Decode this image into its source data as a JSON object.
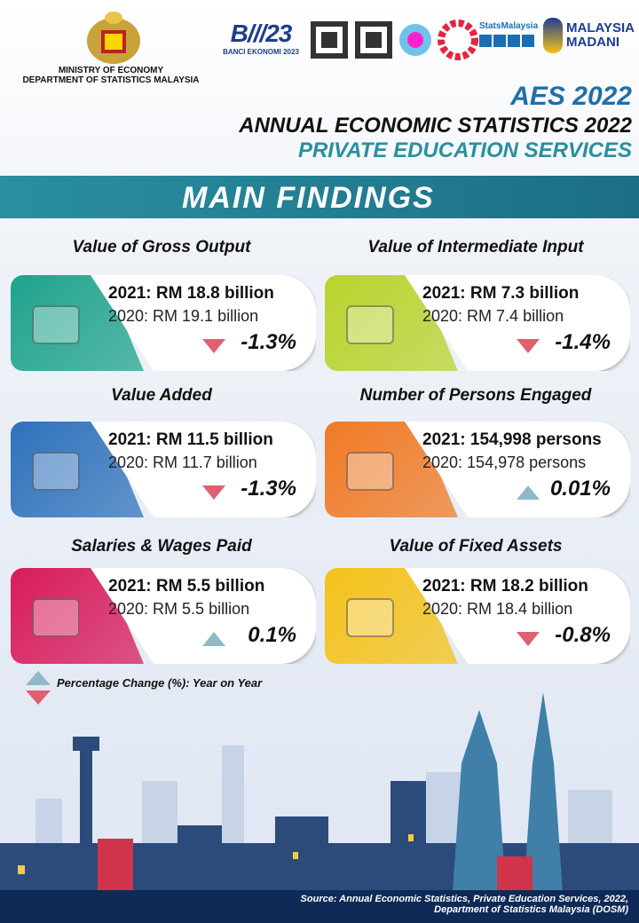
{
  "header": {
    "ministry": "MINISTRY OF ECONOMY",
    "department": "DEPARTMENT OF STATISTICS MALAYSIA",
    "census_logo": "BANCI EKONOMI 2023",
    "stats_logo": "StatsMalaysia",
    "madani_logo": "MALAYSIA MADANI",
    "aes_logo": "AES 2022",
    "title": "ANNUAL ECONOMIC STATISTICS 2022",
    "subtitle": "PRIVATE EDUCATION SERVICES"
  },
  "banner": "MAIN FINDINGS",
  "cards": [
    {
      "title": "Value of Gross Output",
      "current": "2021: RM 18.8 billion",
      "previous": "2020: RM 19.1 billion",
      "change": "-1.3%",
      "trend": "down",
      "color": "#1fa38c"
    },
    {
      "title": "Value of Intermediate Input",
      "current": "2021: RM 7.3 billion",
      "previous": "2020: RM 7.4 billion",
      "change": "-1.4%",
      "trend": "down",
      "color": "#b9d32c"
    },
    {
      "title": "Value Added",
      "current": "2021: RM 11.5 billion",
      "previous": "2020: RM 11.7 billion",
      "change": "-1.3%",
      "trend": "down",
      "color": "#2f72bb"
    },
    {
      "title": "Number of Persons Engaged",
      "current": "2021: 154,998 persons",
      "previous": "2020: 154,978 persons",
      "change": "0.01%",
      "trend": "up",
      "color": "#f07a25"
    },
    {
      "title": "Salaries & Wages Paid",
      "current": "2021: RM 5.5 billion",
      "previous": "2020: RM 5.5 billion",
      "change": "0.1%",
      "trend": "up",
      "color": "#d81b5c"
    },
    {
      "title": "Value of Fixed Assets",
      "current": "2021: RM 18.2 billion",
      "previous": "2020: RM 18.4 billion",
      "change": "-0.8%",
      "trend": "down",
      "color": "#f5c21a"
    }
  ],
  "legend": "Percentage Change (%): Year on Year",
  "source": {
    "line1": "Source: Annual Economic Statistics, Private Education Services, 2022,",
    "line2": "Department of Statistics Malaysia (DOSM)"
  }
}
